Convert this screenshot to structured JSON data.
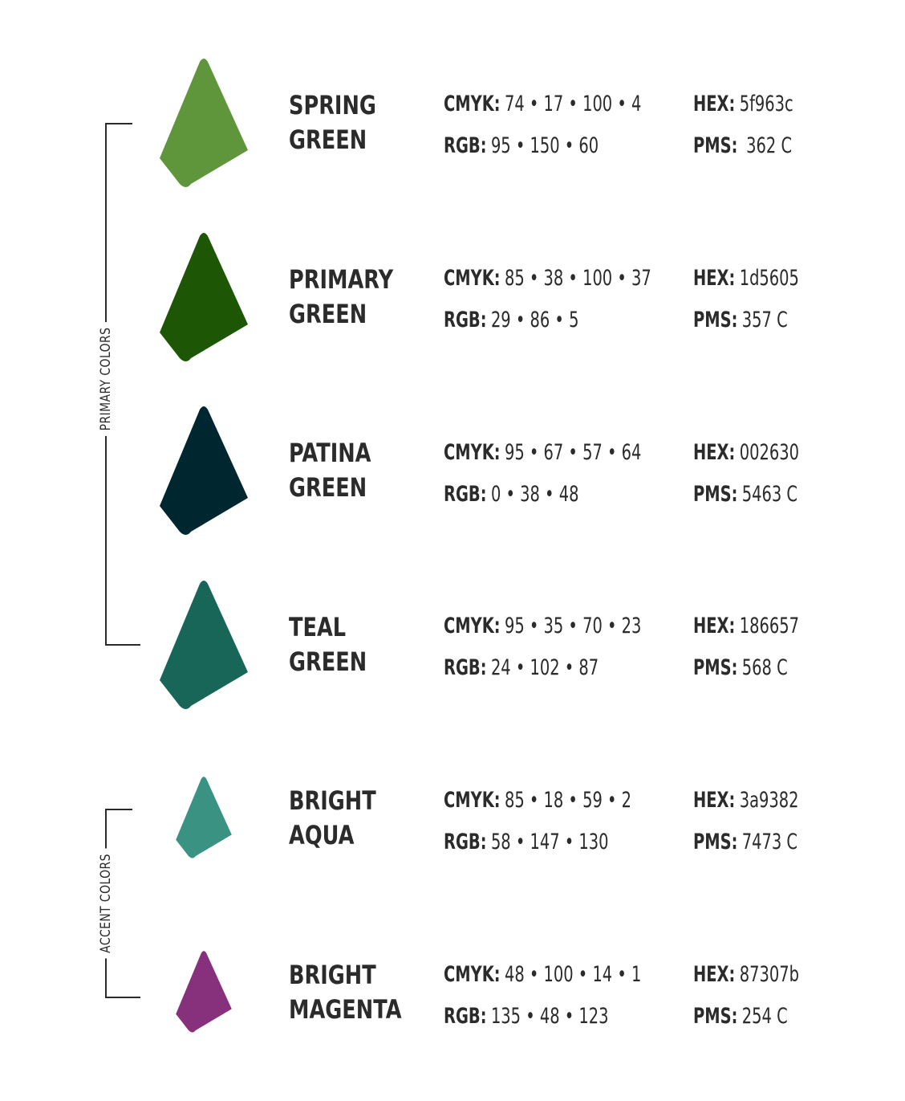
{
  "groups": {
    "primary_label": "PRIMARY COLORS",
    "accent_label": "ACCENT COLORS"
  },
  "colors": [
    {
      "name_line1": "SPRING",
      "name_line2": "GREEN",
      "swatch_color": "#5f963c",
      "cmyk_label": "CMYK:",
      "cmyk": "74 • 17 • 100 • 4",
      "rgb_label": "RGB:",
      "rgb": "95 • 150 • 60",
      "hex_label": "HEX:",
      "hex": "5f963c",
      "pms_label": "PMS:",
      "pms": "362 C"
    },
    {
      "name_line1": "PRIMARY",
      "name_line2": "GREEN",
      "swatch_color": "#1d5605",
      "cmyk_label": "CMYK:",
      "cmyk": "85 • 38 • 100 • 37",
      "rgb_label": "RGB:",
      "rgb": "29 • 86 • 5",
      "hex_label": "HEX:",
      "hex": "1d5605",
      "pms_label": "PMS:",
      "pms": "357 C"
    },
    {
      "name_line1": "PATINA",
      "name_line2": "GREEN",
      "swatch_color": "#002630",
      "cmyk_label": "CMYK:",
      "cmyk": "95 • 67 • 57 • 64",
      "rgb_label": "RGB:",
      "rgb": "0 • 38 • 48",
      "hex_label": "HEX:",
      "hex": "002630",
      "pms_label": "PMS:",
      "pms": "5463 C"
    },
    {
      "name_line1": "TEAL",
      "name_line2": "GREEN",
      "swatch_color": "#186657",
      "cmyk_label": "CMYK:",
      "cmyk": "95 • 35 • 70 • 23",
      "rgb_label": "RGB:",
      "rgb": "24 • 102 • 87",
      "hex_label": "HEX:",
      "hex": "186657",
      "pms_label": "PMS:",
      "pms": "568 C"
    },
    {
      "name_line1": "BRIGHT",
      "name_line2": "AQUA",
      "swatch_color": "#3a9382",
      "cmyk_label": "CMYK:",
      "cmyk": "85 • 18 • 59 • 2",
      "rgb_label": "RGB:",
      "rgb": "58 • 147 • 130",
      "hex_label": "HEX:",
      "hex": "3a9382",
      "pms_label": "PMS:",
      "pms": "7473 C"
    },
    {
      "name_line1": "BRIGHT",
      "name_line2": "MAGENTA",
      "swatch_color": "#87307b",
      "cmyk_label": "CMYK:",
      "cmyk": "48 • 100 • 14 • 1",
      "rgb_label": "RGB:",
      "rgb": "135 • 48 • 123",
      "hex_label": "HEX:",
      "hex": "87307b",
      "pms_label": "PMS:",
      "pms": "254 C"
    }
  ]
}
